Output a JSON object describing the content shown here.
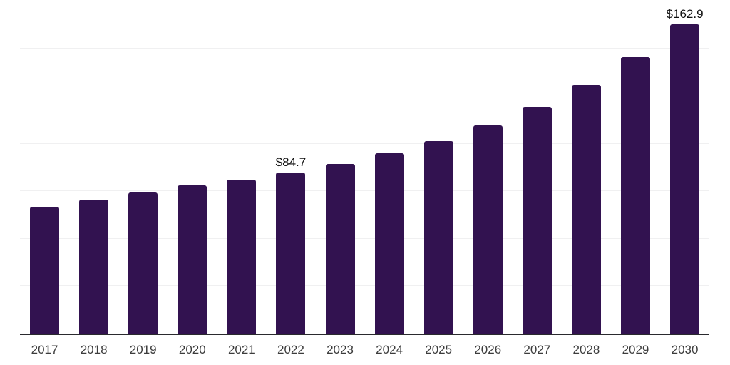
{
  "chart_data": {
    "type": "bar",
    "title": "",
    "xlabel": "",
    "ylabel": "",
    "legend": "none",
    "grid": "horizontal",
    "categories": [
      "2017",
      "2018",
      "2019",
      "2020",
      "2021",
      "2022",
      "2023",
      "2024",
      "2025",
      "2026",
      "2027",
      "2028",
      "2029",
      "2030"
    ],
    "values": [
      67.0,
      70.5,
      74.5,
      78.0,
      81.2,
      84.7,
      89.4,
      95.2,
      101.4,
      109.5,
      119.4,
      131.0,
      145.6,
      162.9
    ],
    "data_labels": {
      "2022": "$84.7",
      "2030": "$162.9"
    },
    "ylim": [
      0,
      175
    ],
    "gridline_step": 25,
    "gridline_count": 7,
    "colors": {
      "bar": "#321250",
      "gridline": "#f0f0f1",
      "axis_line": "#2a2a2e",
      "tick_label": "#3c3c3c",
      "data_label": "#0f0f0f",
      "background": "#ffffff"
    }
  }
}
